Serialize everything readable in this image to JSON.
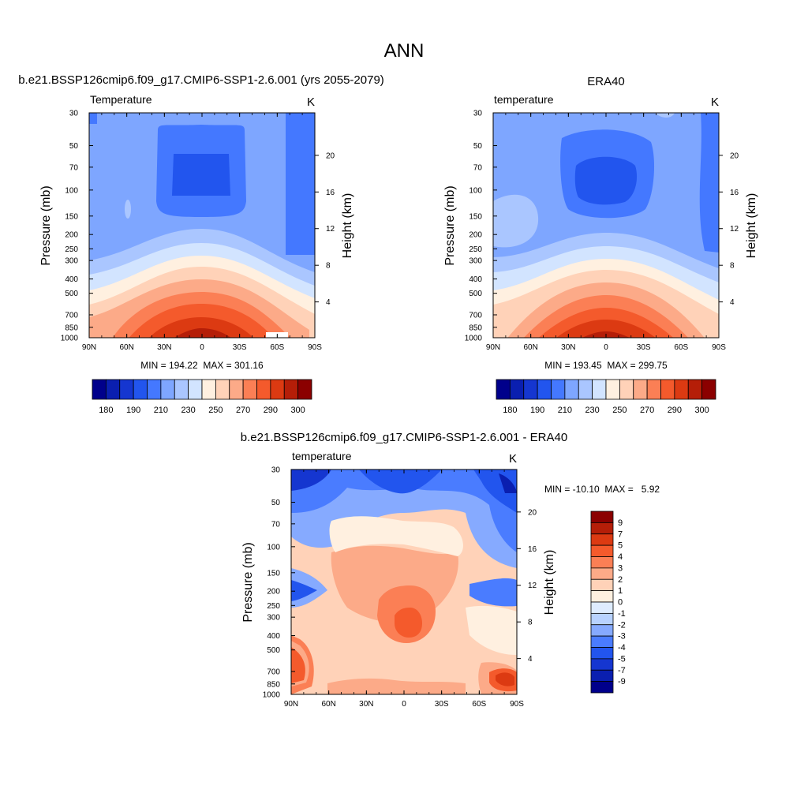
{
  "page": {
    "title": "ANN"
  },
  "colors": {
    "abs_palette": [
      "#00008b",
      "#0a1fb0",
      "#1536d0",
      "#2255ee",
      "#4478ff",
      "#7ea6ff",
      "#aac6ff",
      "#d2e4ff",
      "#fff0e0",
      "#ffd2b8",
      "#fcaa88",
      "#fb7f55",
      "#f45a2c",
      "#dc3a12",
      "#b51e08",
      "#8b0000"
    ],
    "diff_palette": [
      "#00008b",
      "#0a1fb0",
      "#1536d0",
      "#2255ee",
      "#4a7cff",
      "#86aaff",
      "#b8d2ff",
      "#deecff",
      "#fff0e0",
      "#ffd2b8",
      "#fcaa88",
      "#fb7f55",
      "#f45a2c",
      "#dc3a12",
      "#b51e08",
      "#8b0000"
    ]
  },
  "chart_data": [
    {
      "type": "heatmap",
      "id": "model",
      "title": "b.e21.BSSP126cmip6.f09_g17.CMIP6-SSP1-2.6.001 (yrs 2055-2079)",
      "left_label": "Temperature",
      "right_label": "K",
      "xlabel": "",
      "ylabel": "Pressure (mb)",
      "y2label": "Height (km)",
      "x_ticks": [
        "90N",
        "60N",
        "30N",
        "0",
        "30S",
        "60S",
        "90S"
      ],
      "y_ticks": [
        30,
        50,
        70,
        100,
        150,
        200,
        250,
        300,
        400,
        500,
        700,
        850,
        1000
      ],
      "y2_ticks": [
        20,
        16,
        12,
        8,
        4
      ],
      "ylim": [
        1000,
        30
      ],
      "xlim": [
        "90N",
        "90S"
      ],
      "stats": "MIN = 194.22  MAX = 301.16",
      "min": 194.22,
      "max": 301.16,
      "levels": [
        180,
        185,
        190,
        200,
        210,
        220,
        230,
        240,
        250,
        260,
        270,
        280,
        290,
        295,
        300
      ],
      "colorbar_labels": [
        "180",
        "190",
        "210",
        "230",
        "250",
        "270",
        "290",
        "300"
      ],
      "colorbar_orientation": "horizontal"
    },
    {
      "type": "heatmap",
      "id": "obs",
      "title": "ERA40",
      "left_label": "temperature",
      "right_label": "K",
      "xlabel": "",
      "ylabel": "Pressure (mb)",
      "y2label": "Height (km)",
      "x_ticks": [
        "90N",
        "60N",
        "30N",
        "0",
        "30S",
        "60S",
        "90S"
      ],
      "y_ticks": [
        30,
        50,
        70,
        100,
        150,
        200,
        250,
        300,
        400,
        500,
        700,
        850,
        1000
      ],
      "y2_ticks": [
        20,
        16,
        12,
        8,
        4
      ],
      "ylim": [
        1000,
        30
      ],
      "xlim": [
        "90N",
        "90S"
      ],
      "stats": "MIN = 193.45  MAX = 299.75",
      "min": 193.45,
      "max": 299.75,
      "levels": [
        180,
        185,
        190,
        200,
        210,
        220,
        230,
        240,
        250,
        260,
        270,
        280,
        290,
        295,
        300
      ],
      "colorbar_labels": [
        "180",
        "190",
        "210",
        "230",
        "250",
        "270",
        "290",
        "300"
      ],
      "colorbar_orientation": "horizontal"
    },
    {
      "type": "heatmap",
      "id": "diff",
      "title": "b.e21.BSSP126cmip6.f09_g17.CMIP6-SSP1-2.6.001 - ERA40",
      "left_label": "temperature",
      "right_label": "K",
      "xlabel": "",
      "ylabel": "Pressure (mb)",
      "y2label": "Height (km)",
      "x_ticks": [
        "90N",
        "60N",
        "30N",
        "0",
        "30S",
        "60S",
        "90S"
      ],
      "y_ticks": [
        30,
        50,
        70,
        100,
        150,
        200,
        250,
        300,
        400,
        500,
        700,
        850,
        1000
      ],
      "y2_ticks": [
        20,
        16,
        12,
        8,
        4
      ],
      "ylim": [
        1000,
        30
      ],
      "xlim": [
        "90N",
        "90S"
      ],
      "stats": "MIN = -10.10  MAX =   5.92",
      "min": -10.1,
      "max": 5.92,
      "levels": [
        -9,
        -7,
        -5,
        -4,
        -3,
        -2,
        -1,
        0,
        1,
        2,
        3,
        4,
        5,
        7,
        9
      ],
      "colorbar_labels": [
        "9",
        "7",
        "5",
        "4",
        "3",
        "2",
        "1",
        "0",
        "-1",
        "-2",
        "-3",
        "-4",
        "-5",
        "-7",
        "-9"
      ],
      "colorbar_orientation": "vertical"
    }
  ]
}
